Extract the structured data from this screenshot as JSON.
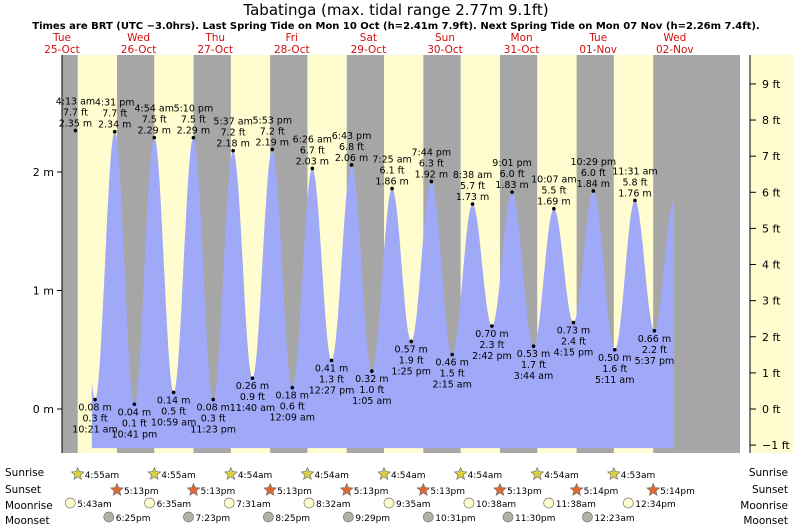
{
  "title": "Tabatinga (max. tidal range 2.77m 9.1ft)",
  "subtitle": "Times are BRT (UTC −3.0hrs). Last Spring Tide on Mon 10 Oct (h=2.41m 7.9ft). Next Spring Tide on Mon 07 Nov (h=2.26m 7.4ft).",
  "row_labels": {
    "sunrise": "Sunrise",
    "sunset": "Sunset",
    "moonrise": "Moonrise",
    "moonset": "Moonset"
  },
  "colors": {
    "night": "#a6a6a6",
    "day": "#fffdd0",
    "water": "#a0a8f8",
    "sun": "#d8d040",
    "sunset": "#e06830",
    "moonrise": "#fffdd0",
    "moonset": "#b0b0a8"
  },
  "chart_data": {
    "type": "area",
    "x_unit": "days from Tue 25-Oct 00:00 (BRT)",
    "xlim": [
      25.0,
      34.0
    ],
    "ylim_m": [
      -0.45,
      2.75
    ],
    "y_ticks_m": [
      {
        "v": 0,
        "label": "0 m"
      },
      {
        "v": 1,
        "label": "1 m"
      },
      {
        "v": 2,
        "label": "2 m"
      }
    ],
    "y_ticks_ft": [
      {
        "v": -1,
        "label": "−1 ft"
      },
      {
        "v": 0,
        "label": "0 ft"
      },
      {
        "v": 1,
        "label": "1 ft"
      },
      {
        "v": 2,
        "label": "2 ft"
      },
      {
        "v": 3,
        "label": "3 ft"
      },
      {
        "v": 4,
        "label": "4 ft"
      },
      {
        "v": 5,
        "label": "5 ft"
      },
      {
        "v": 6,
        "label": "6 ft"
      },
      {
        "v": 7,
        "label": "7 ft"
      },
      {
        "v": 8,
        "label": "8 ft"
      },
      {
        "v": 9,
        "label": "9 ft"
      }
    ],
    "days": [
      {
        "dow": "Tue",
        "date": "25-Oct"
      },
      {
        "dow": "Wed",
        "date": "26-Oct"
      },
      {
        "dow": "Thu",
        "date": "27-Oct"
      },
      {
        "dow": "Fri",
        "date": "28-Oct"
      },
      {
        "dow": "Sat",
        "date": "29-Oct"
      },
      {
        "dow": "Sun",
        "date": "30-Oct"
      },
      {
        "dow": "Mon",
        "date": "31-Oct"
      },
      {
        "dow": "Tue",
        "date": "01-Nov"
      },
      {
        "dow": "Wed",
        "date": "02-Nov"
      }
    ],
    "tides": [
      {
        "t": "2022-10-25T04:13",
        "type": "high",
        "time": "4:13 am",
        "ft": "7.7 ft",
        "m": 2.35,
        "m_label": "2.35 m"
      },
      {
        "t": "2022-10-25T10:21",
        "type": "low",
        "time": "10:21 am",
        "ft": "0.3 ft",
        "m": 0.08,
        "m_label": "0.08 m"
      },
      {
        "t": "2022-10-25T16:31",
        "type": "high",
        "time": "4:31 pm",
        "ft": "7.7 ft",
        "m": 2.34,
        "m_label": "2.34 m"
      },
      {
        "t": "2022-10-25T22:41",
        "type": "low",
        "time": "10:41 pm",
        "ft": "0.1 ft",
        "m": 0.04,
        "m_label": "0.04 m"
      },
      {
        "t": "2022-10-26T04:54",
        "type": "high",
        "time": "4:54 am",
        "ft": "7.5 ft",
        "m": 2.29,
        "m_label": "2.29 m"
      },
      {
        "t": "2022-10-26T10:59",
        "type": "low",
        "time": "10:59 am",
        "ft": "0.5 ft",
        "m": 0.14,
        "m_label": "0.14 m"
      },
      {
        "t": "2022-10-26T17:10",
        "type": "high",
        "time": "5:10 pm",
        "ft": "7.5 ft",
        "m": 2.29,
        "m_label": "2.29 m"
      },
      {
        "t": "2022-10-26T23:23",
        "type": "low",
        "time": "11:23 pm",
        "ft": "0.3 ft",
        "m": 0.08,
        "m_label": "0.08 m"
      },
      {
        "t": "2022-10-27T05:37",
        "type": "high",
        "time": "5:37 am",
        "ft": "7.2 ft",
        "m": 2.18,
        "m_label": "2.18 m"
      },
      {
        "t": "2022-10-27T11:40",
        "type": "low",
        "time": "11:40 am",
        "ft": "0.9 ft",
        "m": 0.26,
        "m_label": "0.26 m"
      },
      {
        "t": "2022-10-27T17:53",
        "type": "high",
        "time": "5:53 pm",
        "ft": "7.2 ft",
        "m": 2.19,
        "m_label": "2.19 m"
      },
      {
        "t": "2022-10-28T00:09",
        "type": "low",
        "time": "12:09 am",
        "ft": "0.6 ft",
        "m": 0.18,
        "m_label": "0.18 m"
      },
      {
        "t": "2022-10-28T06:26",
        "type": "high",
        "time": "6:26 am",
        "ft": "6.7 ft",
        "m": 2.03,
        "m_label": "2.03 m"
      },
      {
        "t": "2022-10-28T12:27",
        "type": "low",
        "time": "12:27 pm",
        "ft": "1.3 ft",
        "m": 0.41,
        "m_label": "0.41 m"
      },
      {
        "t": "2022-10-28T18:43",
        "type": "high",
        "time": "6:43 pm",
        "ft": "6.8 ft",
        "m": 2.06,
        "m_label": "2.06 m"
      },
      {
        "t": "2022-10-29T01:05",
        "type": "low",
        "time": "1:05 am",
        "ft": "1.0 ft",
        "m": 0.32,
        "m_label": "0.32 m"
      },
      {
        "t": "2022-10-29T07:25",
        "type": "high",
        "time": "7:25 am",
        "ft": "6.1 ft",
        "m": 1.86,
        "m_label": "1.86 m"
      },
      {
        "t": "2022-10-29T13:25",
        "type": "low",
        "time": "1:25 pm",
        "ft": "1.9 ft",
        "m": 0.57,
        "m_label": "0.57 m"
      },
      {
        "t": "2022-10-29T19:44",
        "type": "high",
        "time": "7:44 pm",
        "ft": "6.3 ft",
        "m": 1.92,
        "m_label": "1.92 m"
      },
      {
        "t": "2022-10-30T02:15",
        "type": "low",
        "time": "2:15 am",
        "ft": "1.5 ft",
        "m": 0.46,
        "m_label": "0.46 m"
      },
      {
        "t": "2022-10-30T08:38",
        "type": "high",
        "time": "8:38 am",
        "ft": "5.7 ft",
        "m": 1.73,
        "m_label": "1.73 m"
      },
      {
        "t": "2022-10-30T14:42",
        "type": "low",
        "time": "2:42 pm",
        "ft": "2.3 ft",
        "m": 0.7,
        "m_label": "0.70 m"
      },
      {
        "t": "2022-10-30T21:01",
        "type": "high",
        "time": "9:01 pm",
        "ft": "6.0 ft",
        "m": 1.83,
        "m_label": "1.83 m"
      },
      {
        "t": "2022-10-31T03:44",
        "type": "low",
        "time": "3:44 am",
        "ft": "1.7 ft",
        "m": 0.53,
        "m_label": "0.53 m"
      },
      {
        "t": "2022-10-31T10:07",
        "type": "high",
        "time": "10:07 am",
        "ft": "5.5 ft",
        "m": 1.69,
        "m_label": "1.69 m"
      },
      {
        "t": "2022-10-31T16:15",
        "type": "low",
        "time": "4:15 pm",
        "ft": "2.4 ft",
        "m": 0.73,
        "m_label": "0.73 m"
      },
      {
        "t": "2022-10-31T22:29",
        "type": "high",
        "time": "10:29 pm",
        "ft": "6.0 ft",
        "m": 1.84,
        "m_label": "1.84 m"
      },
      {
        "t": "2022-11-01T05:11",
        "type": "low",
        "time": "5:11 am",
        "ft": "1.6 ft",
        "m": 0.5,
        "m_label": "0.50 m"
      },
      {
        "t": "2022-11-01T11:31",
        "type": "high",
        "time": "11:31 am",
        "ft": "5.8 ft",
        "m": 1.76,
        "m_label": "1.76 m"
      },
      {
        "t": "2022-11-01T17:37",
        "type": "low",
        "time": "5:37 pm",
        "ft": "2.2 ft",
        "m": 0.66,
        "m_label": "0.66 m"
      }
    ],
    "sun": [
      {
        "day": 25,
        "rise": "2022-10-25T04:55",
        "rise_label": "4:55am",
        "set": "2022-10-25T17:13",
        "set_label": "5:13pm"
      },
      {
        "day": 26,
        "rise": "2022-10-26T04:55",
        "rise_label": "4:55am",
        "set": "2022-10-26T17:13",
        "set_label": "5:13pm"
      },
      {
        "day": 27,
        "rise": "2022-10-27T04:54",
        "rise_label": "4:54am",
        "set": "2022-10-27T17:13",
        "set_label": "5:13pm"
      },
      {
        "day": 28,
        "rise": "2022-10-28T04:54",
        "rise_label": "4:54am",
        "set": "2022-10-28T17:13",
        "set_label": "5:13pm"
      },
      {
        "day": 29,
        "rise": "2022-10-29T04:54",
        "rise_label": "4:54am",
        "set": "2022-10-29T17:13",
        "set_label": "5:13pm"
      },
      {
        "day": 30,
        "rise": "2022-10-30T04:54",
        "rise_label": "4:54am",
        "set": "2022-10-30T17:13",
        "set_label": "5:13pm"
      },
      {
        "day": 31,
        "rise": "2022-10-31T04:54",
        "rise_label": "4:54am",
        "set": "2022-10-31T17:14",
        "set_label": "5:14pm"
      },
      {
        "day": 32,
        "rise": "2022-11-01T04:53",
        "rise_label": "4:53am",
        "set": "2022-11-01T17:14",
        "set_label": "5:14pm"
      }
    ],
    "moonrise": [
      {
        "t": "2022-10-25T05:43",
        "label": "5:43am"
      },
      {
        "t": "2022-10-26T06:35",
        "label": "6:35am"
      },
      {
        "t": "2022-10-27T07:31",
        "label": "7:31am"
      },
      {
        "t": "2022-10-28T08:32",
        "label": "8:32am"
      },
      {
        "t": "2022-10-29T09:35",
        "label": "9:35am"
      },
      {
        "t": "2022-10-30T10:38",
        "label": "10:38am"
      },
      {
        "t": "2022-10-31T11:38",
        "label": "11:38am"
      },
      {
        "t": "2022-11-01T12:34",
        "label": "12:34pm"
      }
    ],
    "moonset": [
      {
        "t": "2022-10-25T18:25",
        "label": "6:25pm"
      },
      {
        "t": "2022-10-26T19:23",
        "label": "7:23pm"
      },
      {
        "t": "2022-10-27T20:25",
        "label": "8:25pm"
      },
      {
        "t": "2022-10-28T21:29",
        "label": "9:29pm"
      },
      {
        "t": "2022-10-29T22:31",
        "label": "10:31pm"
      },
      {
        "t": "2022-10-30T23:30",
        "label": "11:30pm"
      },
      {
        "t": "2022-11-01T00:23",
        "label": "12:23am"
      }
    ]
  }
}
